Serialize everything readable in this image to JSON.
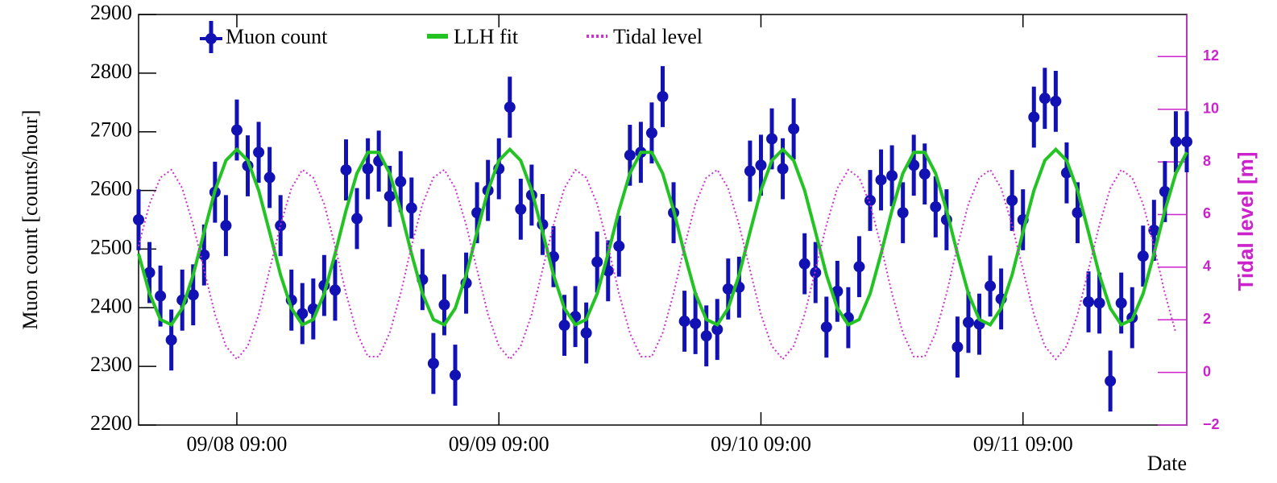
{
  "chart_data": {
    "type": "line",
    "x_label": "Date",
    "y_label": "Muon count [counts/hour]",
    "y2_label": "Tidal level [m]",
    "x": [
      "09/08 00:00",
      "09/08 01:00",
      "09/08 02:00",
      "09/08 03:00",
      "09/08 04:00",
      "09/08 05:00",
      "09/08 06:00",
      "09/08 07:00",
      "09/08 08:00",
      "09/08 09:00",
      "09/08 10:00",
      "09/08 11:00",
      "09/08 12:00",
      "09/08 13:00",
      "09/08 14:00",
      "09/08 15:00",
      "09/08 16:00",
      "09/08 17:00",
      "09/08 18:00",
      "09/08 19:00",
      "09/08 20:00",
      "09/08 21:00",
      "09/08 22:00",
      "09/08 23:00",
      "09/09 00:00",
      "09/09 01:00",
      "09/09 02:00",
      "09/09 03:00",
      "09/09 04:00",
      "09/09 05:00",
      "09/09 06:00",
      "09/09 07:00",
      "09/09 08:00",
      "09/09 09:00",
      "09/09 10:00",
      "09/09 11:00",
      "09/09 12:00",
      "09/09 13:00",
      "09/09 14:00",
      "09/09 15:00",
      "09/09 16:00",
      "09/09 17:00",
      "09/09 18:00",
      "09/09 19:00",
      "09/09 20:00",
      "09/09 21:00",
      "09/09 22:00",
      "09/09 23:00",
      "09/10 00:00",
      "09/10 01:00",
      "09/10 02:00",
      "09/10 03:00",
      "09/10 04:00",
      "09/10 05:00",
      "09/10 06:00",
      "09/10 07:00",
      "09/10 08:00",
      "09/10 09:00",
      "09/10 10:00",
      "09/10 11:00",
      "09/10 12:00",
      "09/10 13:00",
      "09/10 14:00",
      "09/10 15:00",
      "09/10 16:00",
      "09/10 17:00",
      "09/10 18:00",
      "09/10 19:00",
      "09/10 20:00",
      "09/10 21:00",
      "09/10 22:00",
      "09/10 23:00",
      "09/11 00:00",
      "09/11 01:00",
      "09/11 02:00",
      "09/11 03:00",
      "09/11 04:00",
      "09/11 05:00",
      "09/11 06:00",
      "09/11 07:00",
      "09/11 08:00",
      "09/11 09:00",
      "09/11 10:00",
      "09/11 11:00",
      "09/11 12:00",
      "09/11 13:00",
      "09/11 14:00",
      "09/11 15:00",
      "09/11 16:00",
      "09/11 17:00",
      "09/11 18:00",
      "09/11 19:00",
      "09/11 20:00",
      "09/11 21:00",
      "09/11 22:00",
      "09/11 23:00",
      "09/12 00:00"
    ],
    "xlim": [
      "09/08 00:00",
      "09/12 00:00"
    ],
    "xticks": [
      "09/08 09:00",
      "09/09 09:00",
      "09/10 09:00",
      "09/11 09:00"
    ],
    "ylim": [
      2200,
      2900
    ],
    "yticks": [
      2200,
      2300,
      2400,
      2500,
      2600,
      2700,
      2800,
      2900
    ],
    "y2lim": [
      -2,
      13.6
    ],
    "y2ticks": [
      {
        "value": -2,
        "label": "−2"
      },
      0,
      2,
      4,
      6,
      8,
      10,
      12
    ],
    "series": [
      {
        "name": "Muon count",
        "color": "#1212b4",
        "style": "points",
        "error": 52,
        "values": [
          2550,
          2460,
          2420,
          2345,
          2413,
          2422,
          2490,
          2597,
          2540,
          2703,
          2642,
          2665,
          2622,
          2540,
          2413,
          2390,
          2398,
          2438,
          2430,
          2635,
          2552,
          2637,
          2650,
          2590,
          2615,
          2570,
          2448,
          2305,
          2405,
          2285,
          2442,
          2562,
          2600,
          2637,
          2742,
          2568,
          2592,
          2542,
          2487,
          2370,
          2385,
          2357,
          2478,
          2463,
          2505,
          2660,
          2665,
          2698,
          2760,
          2562,
          2377,
          2373,
          2352,
          2363,
          2432,
          2435,
          2633,
          2643,
          2688,
          2637,
          2705,
          2475,
          2460,
          2367,
          2428,
          2383,
          2470,
          2583,
          2618,
          2625,
          2562,
          2643,
          2628,
          2572,
          2550,
          2333,
          2375,
          2372,
          2437,
          2415,
          2583,
          2550,
          2725,
          2757,
          2752,
          2630,
          2562,
          2410,
          2408,
          2275,
          2408,
          2383,
          2488,
          2532,
          2598,
          2683,
          2683
        ]
      },
      {
        "name": "LLH fit",
        "color": "#22c322",
        "style": "solid",
        "values": [
          2492,
          2424,
          2380,
          2371,
          2399,
          2456,
          2529,
          2600,
          2651,
          2670,
          2651,
          2600,
          2529,
          2456,
          2399,
          2371,
          2380,
          2424,
          2492,
          2566,
          2629,
          2665,
          2665,
          2629,
          2566,
          2492,
          2424,
          2380,
          2371,
          2399,
          2456,
          2529,
          2600,
          2651,
          2670,
          2651,
          2600,
          2529,
          2456,
          2399,
          2371,
          2380,
          2424,
          2492,
          2566,
          2629,
          2665,
          2665,
          2629,
          2566,
          2492,
          2424,
          2380,
          2371,
          2399,
          2456,
          2529,
          2600,
          2651,
          2670,
          2651,
          2600,
          2529,
          2456,
          2399,
          2371,
          2380,
          2424,
          2492,
          2566,
          2629,
          2665,
          2665,
          2629,
          2566,
          2492,
          2424,
          2380,
          2371,
          2399,
          2456,
          2529,
          2600,
          2651,
          2670,
          2651,
          2600,
          2529,
          2456,
          2399,
          2371,
          2380,
          2424,
          2492,
          2566,
          2629,
          2665
        ]
      },
      {
        "name": "Tidal level",
        "color": "#cc33cc",
        "style": "dotted",
        "axis": "y2",
        "values": [
          4.8,
          6.4,
          7.4,
          7.7,
          7.0,
          5.6,
          3.9,
          2.2,
          1.0,
          0.5,
          1.0,
          2.2,
          3.9,
          5.6,
          7.0,
          7.7,
          7.4,
          6.4,
          4.8,
          3.0,
          1.5,
          0.6,
          0.6,
          1.5,
          3.0,
          4.8,
          6.4,
          7.4,
          7.7,
          7.0,
          5.6,
          3.9,
          2.2,
          1.0,
          0.5,
          1.0,
          2.2,
          3.9,
          5.6,
          7.0,
          7.7,
          7.4,
          6.4,
          4.8,
          3.0,
          1.5,
          0.6,
          0.6,
          1.5,
          3.0,
          4.8,
          6.4,
          7.4,
          7.7,
          7.0,
          5.6,
          3.9,
          2.2,
          1.0,
          0.5,
          1.0,
          2.2,
          3.9,
          5.6,
          7.0,
          7.7,
          7.4,
          6.4,
          4.8,
          3.0,
          1.5,
          0.6,
          0.6,
          1.5,
          3.0,
          4.8,
          6.4,
          7.4,
          7.7,
          7.0,
          5.6,
          3.9,
          2.2,
          1.0,
          0.5,
          1.0,
          2.2,
          3.9,
          5.6,
          7.0,
          7.7,
          7.4,
          6.4,
          4.8,
          3.0,
          1.5,
          null
        ]
      }
    ]
  }
}
